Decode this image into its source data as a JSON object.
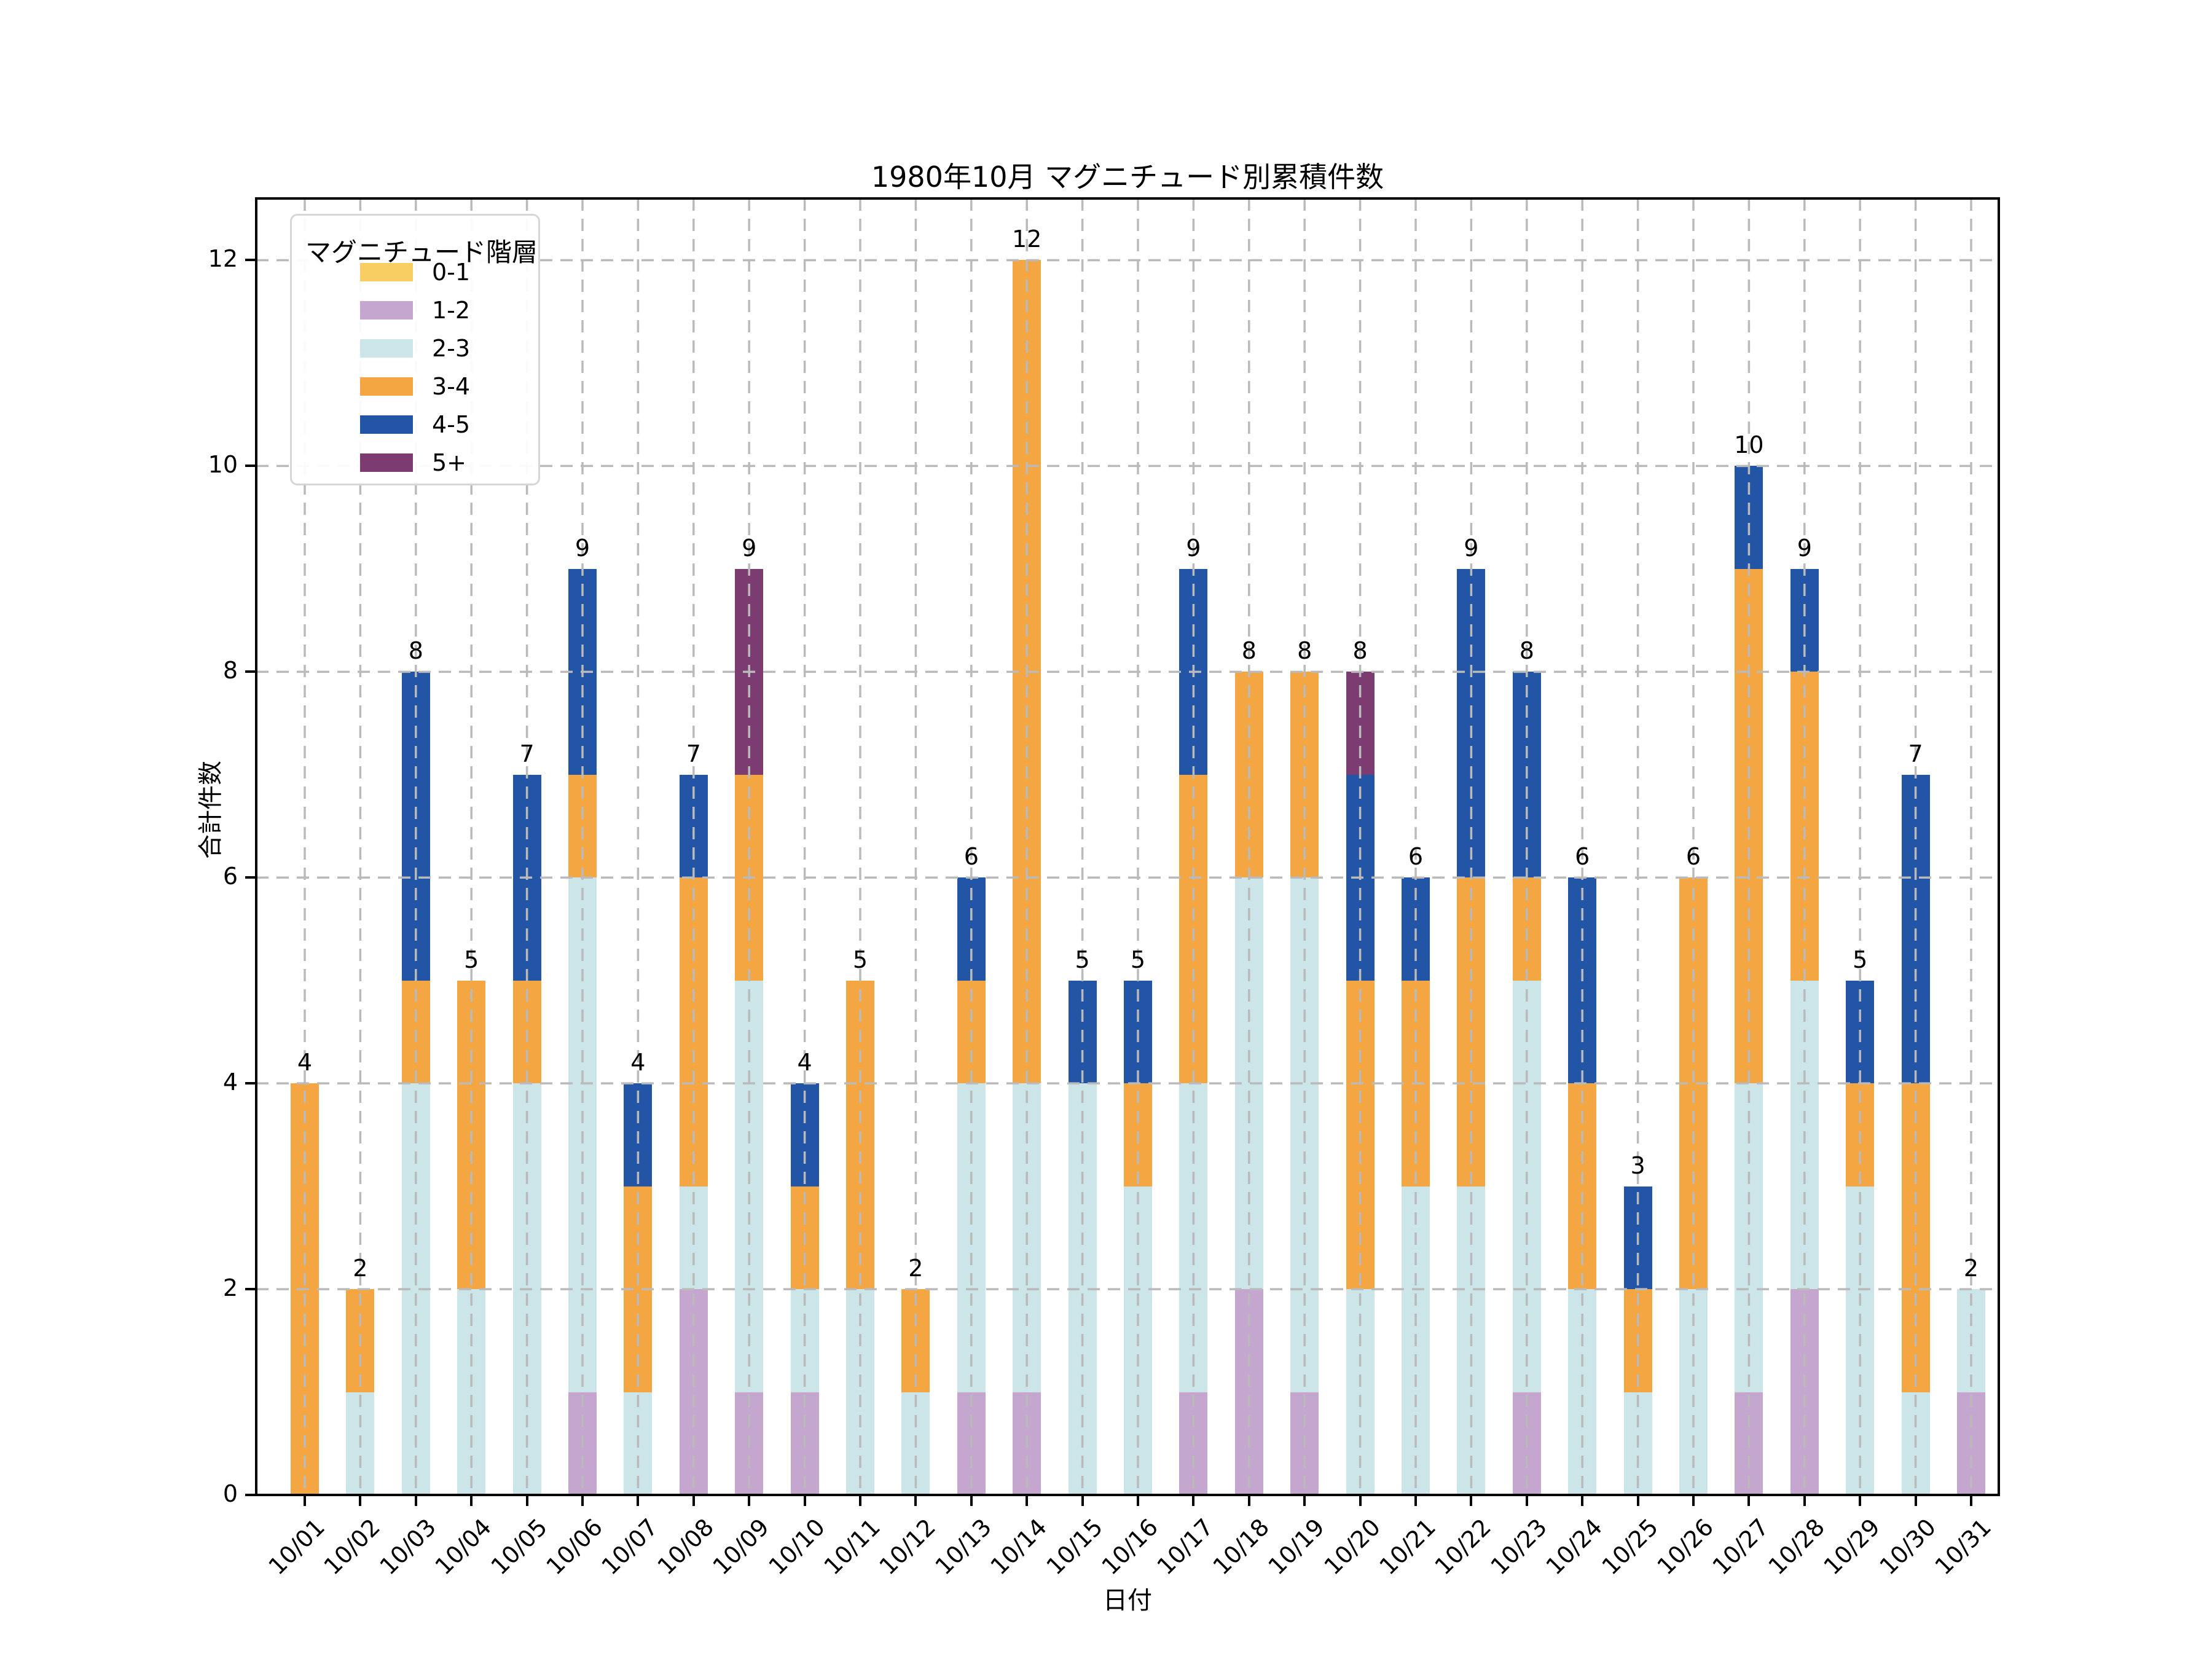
{
  "figure": {
    "title": "1980年10月 マグニチュード別累積件数",
    "xlabel": "日付",
    "ylabel": "合計件数"
  },
  "legend": {
    "title": "マグニチュード階層",
    "position": "upper left"
  },
  "colors": {
    "background": "#ffffff",
    "grid": "#bababa",
    "axis": "#000000",
    "legend_border": "#d6d6d6",
    "text": "#000000"
  },
  "chart_data": {
    "type": "bar",
    "stacked": true,
    "title": "1980年10月 マグニチュード別累積件数",
    "xlabel": "日付",
    "ylabel": "合計件数",
    "legend_title": "マグニチュード階層",
    "legend_position": "upper left",
    "grid": "dashed, both axes, drawn above bars",
    "ylim": [
      0,
      12.6
    ],
    "yticks": [
      0,
      2,
      4,
      6,
      8,
      10,
      12
    ],
    "categories": [
      "10/01",
      "10/02",
      "10/03",
      "10/04",
      "10/05",
      "10/06",
      "10/07",
      "10/08",
      "10/09",
      "10/10",
      "10/11",
      "10/12",
      "10/13",
      "10/14",
      "10/15",
      "10/16",
      "10/17",
      "10/18",
      "10/19",
      "10/20",
      "10/21",
      "10/22",
      "10/23",
      "10/24",
      "10/25",
      "10/26",
      "10/27",
      "10/28",
      "10/29",
      "10/30",
      "10/31"
    ],
    "series": [
      {
        "name": "0-1",
        "color": "#F8CE62",
        "values": [
          0,
          0,
          0,
          0,
          0,
          0,
          0,
          0,
          0,
          0,
          0,
          0,
          0,
          0,
          0,
          0,
          0,
          0,
          0,
          0,
          0,
          0,
          0,
          0,
          0,
          0,
          0,
          0,
          0,
          0,
          0
        ]
      },
      {
        "name": "1-2",
        "color": "#C5A6CE",
        "values": [
          0,
          0,
          0,
          0,
          0,
          1,
          0,
          2,
          1,
          1,
          0,
          0,
          1,
          1,
          0,
          0,
          1,
          2,
          1,
          0,
          0,
          0,
          1,
          0,
          0,
          0,
          1,
          2,
          0,
          0,
          1
        ]
      },
      {
        "name": "2-3",
        "color": "#CBE5E8",
        "values": [
          0,
          1,
          4,
          2,
          4,
          5,
          1,
          1,
          4,
          1,
          2,
          1,
          3,
          3,
          4,
          3,
          3,
          4,
          5,
          2,
          3,
          3,
          4,
          2,
          1,
          2,
          3,
          3,
          3,
          1,
          1
        ]
      },
      {
        "name": "3-4",
        "color": "#F4A642",
        "values": [
          4,
          1,
          1,
          3,
          1,
          1,
          2,
          3,
          2,
          1,
          3,
          1,
          1,
          8,
          0,
          1,
          3,
          2,
          2,
          3,
          2,
          3,
          1,
          2,
          1,
          4,
          5,
          3,
          1,
          3,
          0
        ]
      },
      {
        "name": "4-5",
        "color": "#2355A7",
        "values": [
          0,
          0,
          3,
          0,
          2,
          2,
          1,
          1,
          0,
          1,
          0,
          0,
          1,
          0,
          1,
          1,
          2,
          0,
          0,
          2,
          1,
          3,
          2,
          2,
          1,
          0,
          1,
          1,
          1,
          3,
          0
        ]
      },
      {
        "name": "5+",
        "color": "#7C3C71",
        "values": [
          0,
          0,
          0,
          0,
          0,
          0,
          0,
          0,
          2,
          0,
          0,
          0,
          0,
          0,
          0,
          0,
          0,
          0,
          0,
          1,
          0,
          0,
          0,
          0,
          0,
          0,
          0,
          0,
          0,
          0,
          0
        ]
      }
    ],
    "totals": [
      4,
      2,
      8,
      5,
      7,
      9,
      4,
      7,
      9,
      4,
      5,
      2,
      6,
      12,
      5,
      5,
      9,
      8,
      8,
      8,
      6,
      9,
      8,
      6,
      3,
      6,
      10,
      9,
      5,
      7,
      2
    ]
  }
}
